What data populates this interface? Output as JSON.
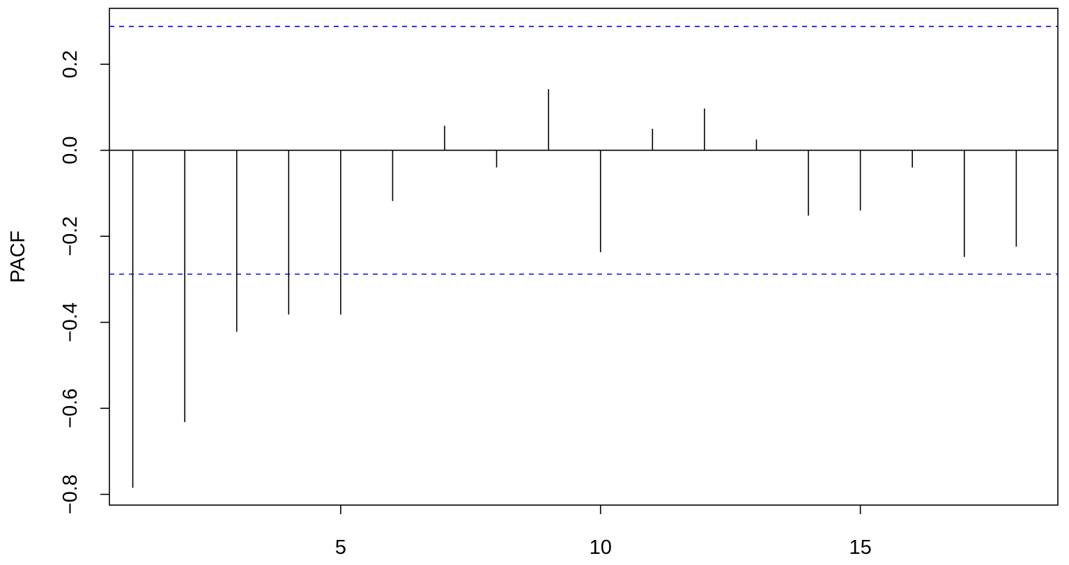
{
  "chart_data": {
    "type": "bar",
    "style": "vertical-lines",
    "ylabel": "PACF",
    "xlabel": "",
    "x": [
      1,
      2,
      3,
      4,
      5,
      6,
      7,
      8,
      9,
      10,
      11,
      12,
      13,
      14,
      15,
      16,
      17,
      18
    ],
    "values": [
      -0.785,
      -0.632,
      -0.422,
      -0.382,
      -0.382,
      -0.118,
      0.057,
      -0.04,
      0.142,
      -0.237,
      0.05,
      0.097,
      0.025,
      -0.152,
      -0.14,
      -0.04,
      -0.248,
      -0.224
    ],
    "xlim": [
      0.55,
      18.8
    ],
    "ylim": [
      -0.825,
      0.33
    ],
    "x_ticks": [
      5,
      10,
      15
    ],
    "x_tick_labels": [
      "5",
      "10",
      "15"
    ],
    "y_ticks": [
      -0.8,
      -0.6,
      -0.4,
      -0.2,
      0.0,
      0.2
    ],
    "y_tick_labels": [
      "−0.8",
      "−0.6",
      "−0.4",
      "−0.2",
      "0.0",
      "0.2"
    ],
    "confidence_bounds": [
      0.288,
      -0.288
    ],
    "zero_line": 0,
    "grid": false,
    "colors": {
      "lines": "#000000",
      "bounds": "#0000ff",
      "frame": "#000000"
    }
  }
}
